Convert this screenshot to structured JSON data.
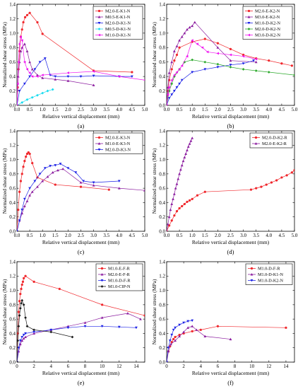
{
  "figure": {
    "title": ""
  },
  "colors": {
    "red": "#f0282d",
    "purple": "#8c1ea0",
    "blue": "#1e23e6",
    "cyan": "#19dcf0",
    "magenta": "#f014f0",
    "green": "#2aa82a",
    "black": "#1a1a1a"
  },
  "chart_data": [
    {
      "panel_label": "(a)",
      "type": "line",
      "xlabel": "Relative vertical displacement",
      "xlabel_unit": "(mm)",
      "ylabel": "Normalized shear stress (MPa)",
      "xlim": [
        0,
        5
      ],
      "ylim": [
        0,
        1.4
      ],
      "xticks": [
        "0.0",
        "0.5",
        "1.0",
        "1.5",
        "2.0",
        "2.5",
        "3.0",
        "3.5",
        "4.0",
        "4.5",
        "5.0"
      ],
      "yticks": [
        "0.0",
        "0.2",
        "0.4",
        "0.6",
        "0.8",
        "1.0",
        "1.2",
        "1.4"
      ],
      "legend_position": "top-right",
      "series": [
        {
          "name": "M2.0-E-K1-N",
          "color": "red",
          "marker": "circle",
          "x": [
            0,
            0.03,
            0.06,
            0.1,
            0.15,
            0.2,
            0.25,
            0.32,
            0.4,
            0.5,
            0.8,
            1.0,
            3.0,
            4.5
          ],
          "y": [
            0,
            0.25,
            0.5,
            0.75,
            0.95,
            1.05,
            1.15,
            1.22,
            1.25,
            1.28,
            1.15,
            0.99,
            0.48,
            0.46
          ]
        },
        {
          "name": "M0.5-E-K1-N",
          "color": "purple",
          "marker": "triangle-up",
          "x": [
            0,
            0.05,
            0.1,
            0.15,
            0.2,
            0.3,
            0.4,
            0.5,
            0.6,
            0.8,
            1.0,
            1.5,
            2.0,
            3.0
          ],
          "y": [
            0,
            0.4,
            0.6,
            0.75,
            0.8,
            0.85,
            0.75,
            0.6,
            0.5,
            0.42,
            0.38,
            0.36,
            0.34,
            0.28
          ]
        },
        {
          "name": "M2.0-D-K1-N",
          "color": "blue",
          "marker": "triangle-down",
          "x": [
            0,
            0.1,
            0.3,
            0.5,
            0.7,
            0.9,
            1.1,
            1.3,
            1.5,
            2.0,
            2.5,
            3.0,
            4.0,
            4.5
          ],
          "y": [
            0,
            0.2,
            0.3,
            0.4,
            0.5,
            0.6,
            0.65,
            0.42,
            0.4,
            0.4,
            0.4,
            0.41,
            0.4,
            0.4
          ]
        },
        {
          "name": "M0.5-D-K1-N",
          "color": "cyan",
          "marker": "diamond",
          "x": [
            0,
            0.2,
            0.4,
            0.6,
            0.8,
            1.0,
            1.2,
            1.4
          ],
          "y": [
            0,
            0.04,
            0.08,
            0.11,
            0.14,
            0.17,
            0.2,
            0.22
          ]
        },
        {
          "name": "M1.0-D-K1-N",
          "color": "magenta",
          "marker": "triangle-left",
          "x": [
            0,
            0.03,
            0.06,
            0.1,
            0.15,
            0.2,
            0.3,
            0.4,
            0.5,
            0.6,
            0.8,
            1.0,
            2.0,
            3.0,
            4.0,
            5.0
          ],
          "y": [
            0,
            0.3,
            0.6,
            0.85,
            0.95,
            0.9,
            0.6,
            0.5,
            0.45,
            0.4,
            0.4,
            0.42,
            0.45,
            0.47,
            0.4,
            0.35
          ]
        }
      ]
    },
    {
      "panel_label": "(b)",
      "type": "line",
      "xlabel": "Relative vertical displacement",
      "xlabel_unit": "(mm)",
      "ylabel": "Normalized shear stress (MPa)",
      "xlim": [
        0,
        5
      ],
      "ylim": [
        0,
        1.4
      ],
      "xticks": [
        "0.0",
        "0.5",
        "1.0",
        "1.5",
        "2.0",
        "2.5",
        "3.0",
        "3.5",
        "4.0",
        "4.5",
        "5.0"
      ],
      "yticks": [
        "0.0",
        "0.2",
        "0.4",
        "0.6",
        "0.8",
        "1.0",
        "1.2",
        "1.4"
      ],
      "legend_position": "top-right",
      "series": [
        {
          "name": "M2.0-E-K2-N",
          "color": "red",
          "marker": "circle",
          "x": [
            0,
            0.05,
            0.1,
            0.2,
            0.3,
            0.4,
            0.5,
            1.0,
            1.5,
            2.0,
            2.5,
            3.0,
            3.5,
            4.0,
            4.5,
            4.9
          ],
          "y": [
            0,
            0.2,
            0.35,
            0.5,
            0.62,
            0.7,
            0.8,
            0.88,
            0.92,
            0.86,
            0.78,
            0.7,
            0.65,
            0.62,
            0.58,
            0.55
          ]
        },
        {
          "name": "M3.0-E-K2-N",
          "color": "purple",
          "marker": "triangle-up",
          "x": [
            0,
            0.05,
            0.1,
            0.2,
            0.3,
            0.4,
            0.5,
            0.6,
            0.7,
            0.8,
            0.9,
            1.0,
            1.1,
            2.0,
            2.5,
            3.5
          ],
          "y": [
            0,
            0.25,
            0.45,
            0.6,
            0.75,
            0.82,
            0.9,
            0.95,
            1.0,
            1.05,
            1.08,
            1.1,
            1.15,
            0.8,
            0.62,
            0.6
          ]
        },
        {
          "name": "M1.0-D-K2-N",
          "color": "blue",
          "marker": "triangle-down",
          "x": [
            0,
            0.1,
            0.2,
            0.3,
            0.4,
            0.5,
            0.6,
            1.0,
            1.5,
            2.0,
            2.5,
            3.0,
            3.4
          ],
          "y": [
            0,
            0.1,
            0.15,
            0.2,
            0.25,
            0.3,
            0.35,
            0.46,
            0.5,
            0.53,
            0.56,
            0.58,
            0.62
          ]
        },
        {
          "name": "M2.0-D-K2-N",
          "color": "green",
          "marker": "diamond",
          "x": [
            0,
            0.1,
            0.2,
            0.3,
            0.5,
            0.7,
            1.0,
            1.5,
            2.0,
            2.5,
            3.0,
            3.5,
            4.0,
            5.0
          ],
          "y": [
            0,
            0.2,
            0.3,
            0.4,
            0.5,
            0.6,
            0.63,
            0.6,
            0.57,
            0.53,
            0.5,
            0.48,
            0.46,
            0.42
          ]
        },
        {
          "name": "M3.0-D-K2-N",
          "color": "magenta",
          "marker": "triangle-left",
          "x": [
            0,
            0.05,
            0.1,
            0.2,
            0.3,
            0.4,
            0.5,
            0.6,
            0.8,
            1.0,
            1.2,
            1.4,
            1.6,
            2.0,
            2.5,
            3.0,
            3.5
          ],
          "y": [
            0,
            0.15,
            0.25,
            0.35,
            0.42,
            0.46,
            0.5,
            0.55,
            0.68,
            0.9,
            0.85,
            0.8,
            0.74,
            0.72,
            0.7,
            0.68,
            0.64
          ]
        }
      ]
    },
    {
      "panel_label": "(c)",
      "type": "line",
      "xlabel": "Relative vertical displacement",
      "xlabel_unit": "(mm)",
      "ylabel": "Normalized shear stress (MPa)",
      "xlim": [
        0,
        5
      ],
      "ylim": [
        0,
        1.4
      ],
      "xticks": [
        "0.0",
        "0.5",
        "1.0",
        "1.5",
        "2.0",
        "2.5",
        "3.0",
        "3.5",
        "4.0",
        "4.5",
        "5.0"
      ],
      "yticks": [
        "0.0",
        "0.2",
        "0.4",
        "0.6",
        "0.8",
        "1.0",
        "1.2",
        "1.4"
      ],
      "legend_position": "top-right",
      "series": [
        {
          "name": "M2.0-E-K3-N",
          "color": "red",
          "marker": "circle",
          "x": [
            0,
            0.05,
            0.1,
            0.15,
            0.2,
            0.25,
            0.3,
            0.35,
            0.4,
            0.45,
            0.5,
            0.6,
            0.8,
            1.5,
            2.5,
            3.6
          ],
          "y": [
            0,
            0.3,
            0.55,
            0.7,
            0.8,
            0.9,
            0.98,
            1.04,
            1.08,
            1.1,
            1.08,
            0.95,
            0.75,
            0.65,
            0.62,
            0.58
          ]
        },
        {
          "name": "M1.0-E-K3-N",
          "color": "purple",
          "marker": "triangle-up",
          "x": [
            0,
            0.1,
            0.2,
            0.3,
            0.4,
            0.5,
            0.6,
            0.8,
            1.0,
            1.2,
            1.4,
            1.6,
            1.8,
            2.5,
            3.0,
            4.0,
            5.0
          ],
          "y": [
            0,
            0.15,
            0.25,
            0.35,
            0.42,
            0.5,
            0.55,
            0.62,
            0.7,
            0.76,
            0.82,
            0.85,
            0.87,
            0.68,
            0.64,
            0.6,
            0.57
          ]
        },
        {
          "name": "M2.0-D-K3-N",
          "color": "blue",
          "marker": "triangle-down",
          "x": [
            0,
            0.1,
            0.2,
            0.3,
            0.5,
            0.7,
            0.9,
            1.1,
            1.3,
            1.5,
            1.7,
            2.0,
            2.3,
            2.6,
            3.0,
            4.0
          ],
          "y": [
            0,
            0.15,
            0.3,
            0.45,
            0.6,
            0.7,
            0.8,
            0.88,
            0.91,
            0.92,
            0.94,
            0.88,
            0.82,
            0.7,
            0.68,
            0.7
          ]
        }
      ]
    },
    {
      "panel_label": "(d)",
      "type": "line",
      "xlabel": "Relative vertical displacement",
      "xlabel_unit": "(mm)",
      "ylabel": "Normalized shear stress (MPa)",
      "xlim": [
        0,
        5
      ],
      "ylim": [
        0,
        1.4
      ],
      "xticks": [
        "0.0",
        "0.5",
        "1.0",
        "1.5",
        "2.0",
        "2.5",
        "3.0",
        "3.5",
        "4.0",
        "4.5",
        "5.0"
      ],
      "yticks": [
        "0.0",
        "0.2",
        "0.4",
        "0.6",
        "0.8",
        "1.0",
        "1.2",
        "1.4"
      ],
      "legend_position": "top-right",
      "series": [
        {
          "name": "M2.0-D-K2-R",
          "color": "red",
          "marker": "circle",
          "x": [
            0,
            0.1,
            0.2,
            0.3,
            0.4,
            0.5,
            0.6,
            0.7,
            0.8,
            0.9,
            1.0,
            1.2,
            1.5,
            3.3,
            3.5,
            3.7,
            3.9,
            4.1,
            4.3,
            4.5,
            4.7,
            4.9,
            5.0
          ],
          "y": [
            0,
            0.08,
            0.15,
            0.22,
            0.28,
            0.32,
            0.35,
            0.38,
            0.41,
            0.43,
            0.45,
            0.5,
            0.55,
            0.58,
            0.6,
            0.62,
            0.65,
            0.68,
            0.71,
            0.75,
            0.78,
            0.82,
            0.85
          ]
        },
        {
          "name": "M2.0-E-K2-R",
          "color": "purple",
          "marker": "triangle-up",
          "x": [
            0,
            0.05,
            0.1,
            0.15,
            0.2,
            0.25,
            0.3,
            0.35,
            0.4,
            0.45,
            0.5,
            0.55,
            0.6,
            0.65,
            0.7,
            0.75,
            0.8,
            0.85,
            0.9,
            0.95,
            1.0
          ],
          "y": [
            0,
            0.1,
            0.2,
            0.3,
            0.38,
            0.45,
            0.52,
            0.6,
            0.66,
            0.73,
            0.8,
            0.86,
            0.92,
            0.98,
            1.03,
            1.08,
            1.13,
            1.18,
            1.22,
            1.26,
            1.3
          ]
        }
      ]
    },
    {
      "panel_label": "(e)",
      "type": "line",
      "xlabel": "Relative vertical displacement",
      "xlabel_unit": "(mm)",
      "ylabel": "Normalized shear stress (MPa)",
      "xlim": [
        0,
        15
      ],
      "ylim": [
        0,
        1.4
      ],
      "xticks": [
        "0",
        "2",
        "4",
        "6",
        "8",
        "10",
        "12",
        "14"
      ],
      "yticks": [
        "0.0",
        "0.2",
        "0.4",
        "0.6",
        "0.8",
        "1.0",
        "1.2",
        "1.4"
      ],
      "legend_position": "top-right",
      "series": [
        {
          "name": "M1.0-E-F-R",
          "color": "red",
          "marker": "circle",
          "x": [
            0,
            0.1,
            0.2,
            0.3,
            0.4,
            0.5,
            0.6,
            0.7,
            0.8,
            1.0,
            2.0,
            5.0,
            10.0,
            15.0
          ],
          "y": [
            0,
            0.4,
            0.7,
            0.85,
            0.95,
            1.02,
            1.08,
            1.12,
            1.17,
            1.2,
            1.12,
            1.02,
            0.8,
            0.65
          ]
        },
        {
          "name": "M2.0-E-F-R",
          "color": "purple",
          "marker": "triangle-up",
          "x": [
            0,
            0.2,
            0.4,
            0.6,
            0.8,
            1.0,
            2.0,
            4.0,
            6.0,
            8.0,
            10.0,
            13.0,
            14.5
          ],
          "y": [
            0,
            0.15,
            0.25,
            0.3,
            0.33,
            0.35,
            0.4,
            0.45,
            0.5,
            0.55,
            0.62,
            0.68,
            0.6
          ]
        },
        {
          "name": "M1.0-D-F-R",
          "color": "blue",
          "marker": "triangle-down",
          "x": [
            0,
            0.2,
            0.4,
            0.6,
            0.8,
            1.0,
            2.0,
            4.0,
            6.0,
            8.0,
            10.0,
            12.0,
            14.0
          ],
          "y": [
            0,
            0.2,
            0.3,
            0.35,
            0.38,
            0.4,
            0.42,
            0.45,
            0.48,
            0.5,
            0.5,
            0.49,
            0.48
          ]
        },
        {
          "name": "M1.0-CIP-N",
          "color": "black",
          "marker": "diamond",
          "x": [
            0,
            0.1,
            0.2,
            0.3,
            0.4,
            0.5,
            0.6,
            0.8,
            1.0,
            1.2,
            2.0,
            4.0,
            6.5
          ],
          "y": [
            0,
            0.3,
            0.5,
            0.65,
            0.75,
            0.82,
            0.86,
            0.8,
            0.62,
            0.5,
            0.45,
            0.42,
            0.35
          ]
        }
      ]
    },
    {
      "panel_label": "(f)",
      "type": "line",
      "xlabel": "Relative vertical displacement",
      "xlabel_unit": "(mm)",
      "ylabel": "Normalized shear stress (MPa)",
      "xlim": [
        0,
        15
      ],
      "ylim": [
        0,
        1.4
      ],
      "xticks": [
        "0",
        "2",
        "4",
        "6",
        "8",
        "10",
        "12",
        "14"
      ],
      "yticks": [
        "0.0",
        "0.2",
        "0.4",
        "0.6",
        "0.8",
        "1.0",
        "1.2",
        "1.4"
      ],
      "legend_position": "top-right",
      "series": [
        {
          "name": "M1.0-D-F-R",
          "color": "red",
          "marker": "circle",
          "x": [
            0,
            0.2,
            0.4,
            0.6,
            0.8,
            1.0,
            1.5,
            2.0,
            3.0,
            4.0,
            6.0,
            14.0
          ],
          "y": [
            0,
            0.15,
            0.22,
            0.28,
            0.32,
            0.35,
            0.38,
            0.4,
            0.43,
            0.45,
            0.5,
            0.48
          ]
        },
        {
          "name": "M1.0-D-K1-N",
          "color": "purple",
          "marker": "triangle-up",
          "x": [
            0,
            0.2,
            0.5,
            1.0,
            1.5,
            2.0,
            2.5,
            3.0,
            3.5,
            4.5,
            7.5
          ],
          "y": [
            0,
            0.15,
            0.25,
            0.3,
            0.36,
            0.42,
            0.48,
            0.5,
            0.45,
            0.36,
            0.32
          ]
        },
        {
          "name": "M1.0-D-K2-N",
          "color": "blue",
          "marker": "triangle-down",
          "x": [
            0,
            0.2,
            0.4,
            0.6,
            0.8,
            1.0,
            1.5,
            2.0,
            2.5,
            3.0
          ],
          "y": [
            0,
            0.2,
            0.3,
            0.38,
            0.45,
            0.48,
            0.52,
            0.55,
            0.57,
            0.58
          ]
        }
      ]
    }
  ]
}
